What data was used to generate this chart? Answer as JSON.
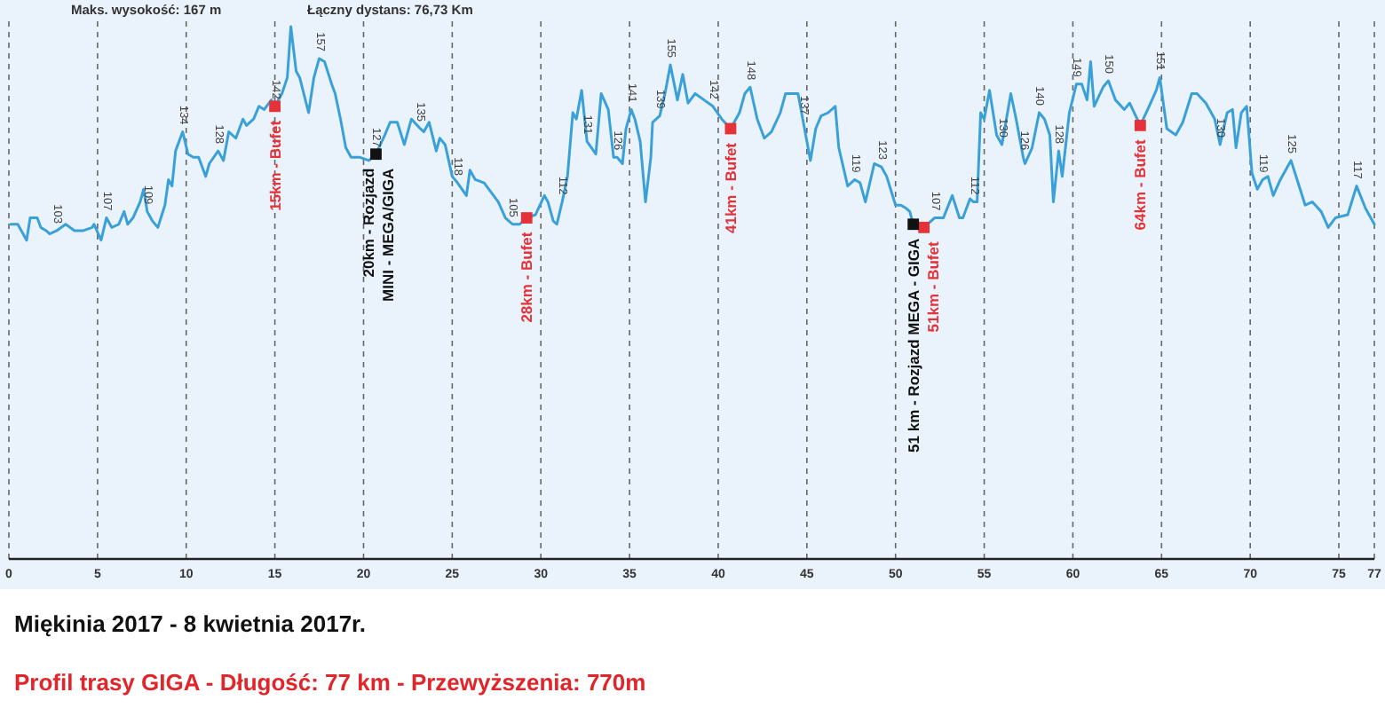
{
  "chart_data": {
    "type": "line",
    "title": "Miękinia 2017 - 8 kwietnia 2017r.",
    "subtitle": "Profil trasy GIGA - Długość: 77 km - Przewyższenia: 770m",
    "xlim": [
      0,
      77
    ],
    "xticks": [
      0,
      5,
      10,
      15,
      20,
      25,
      30,
      35,
      40,
      45,
      50,
      55,
      60,
      65,
      70,
      75,
      77
    ],
    "tick_labels": "x",
    "grid": "x",
    "series": [
      {
        "color": "#3aa0d8",
        "x": [
          0.1,
          0.5,
          1.0,
          1.2,
          1.6,
          1.8,
          2.1,
          2.3,
          2.7,
          3.2,
          3.7,
          4.2,
          4.7,
          4.8,
          5.2,
          5.5,
          5.8,
          6.2,
          6.5,
          6.7,
          7.0,
          7.4,
          7.6,
          7.8,
          8.1,
          8.4,
          8.8,
          9.0,
          9.2,
          9.4,
          9.8,
          10.1,
          10.4,
          10.7,
          11.1,
          11.3,
          11.8,
          12.1,
          12.4,
          12.8,
          13.2,
          13.4,
          13.8,
          14.1,
          14.4,
          14.8,
          15.0,
          15.4,
          15.7,
          15.9,
          16.2,
          16.4,
          16.9,
          17.2,
          17.5,
          17.8,
          18.2,
          18.4,
          18.7,
          19.0,
          19.3,
          19.8,
          20.3,
          20.7,
          21.2,
          21.5,
          21.9,
          22.3,
          22.7,
          23.2,
          23.4,
          23.7,
          24.1,
          24.3,
          24.6,
          25.0,
          25.3,
          25.8,
          26.0,
          26.3,
          26.8,
          27.2,
          27.6,
          28.0,
          28.4,
          28.8,
          29.2,
          29.7,
          30.2,
          30.4,
          30.7,
          30.9,
          31.2,
          31.5,
          31.8,
          32.0,
          32.3,
          32.6,
          33.1,
          33.4,
          33.8,
          34.1,
          34.3,
          34.6,
          34.8,
          35.1,
          35.3,
          35.6,
          35.9,
          36.2,
          36.3,
          36.7,
          37.0,
          37.3,
          37.7,
          38.0,
          38.3,
          38.7,
          39.2,
          39.7,
          40.2,
          40.7,
          41.2,
          41.5,
          41.8,
          42.2,
          42.6,
          43.0,
          43.5,
          43.8,
          44.2,
          44.5,
          44.8,
          45.2,
          45.5,
          45.8,
          46.2,
          46.6,
          46.8,
          47.3,
          47.7,
          48.0,
          48.3,
          48.8,
          49.2,
          49.5,
          50.0,
          50.3,
          50.6,
          50.8,
          51.0,
          51.3,
          51.6,
          52.2,
          52.7,
          53.2,
          53.6,
          53.8,
          54.2,
          54.4,
          54.6,
          54.8,
          55.0,
          55.3,
          55.7,
          56.0,
          56.5,
          56.8,
          57.2,
          57.3,
          57.7,
          58.1,
          58.4,
          58.7,
          58.9,
          59.2,
          59.4,
          59.8,
          60.2,
          60.5,
          60.8,
          61.0,
          61.2,
          61.7,
          62.0,
          62.4,
          62.9,
          63.2,
          63.8,
          64.3,
          64.7,
          64.9,
          65.3,
          65.8,
          66.2,
          66.7,
          67.0,
          67.5,
          68.0,
          68.3,
          68.7,
          69.0,
          69.2,
          69.5,
          69.8,
          70.1,
          70.4,
          70.7,
          71.0,
          71.3,
          71.7,
          72.1,
          72.3,
          72.7,
          73.1,
          73.5,
          74.0,
          74.4,
          74.8,
          75.5,
          76.0,
          76.5,
          77.0
        ],
        "values": [
          105,
          105,
          100,
          107,
          107,
          104,
          103,
          102,
          103,
          105,
          103,
          103,
          104,
          105,
          100,
          107,
          104,
          105,
          109,
          105,
          107,
          112,
          116,
          109,
          106,
          104,
          111,
          119,
          117,
          128,
          134,
          127,
          126,
          126,
          120,
          124,
          128,
          125,
          134,
          132,
          138,
          136,
          138,
          142,
          141,
          144,
          142,
          146,
          151,
          167,
          153,
          151,
          140,
          151,
          157,
          156,
          149,
          146,
          138,
          129,
          126,
          126,
          125,
          127,
          133,
          137,
          137,
          130,
          138,
          135,
          134,
          137,
          128,
          132,
          130,
          120,
          118,
          114,
          122,
          119,
          118,
          115,
          112,
          107,
          105,
          105,
          107,
          108,
          114,
          112,
          106,
          105,
          112,
          120,
          140,
          138,
          147,
          131,
          127,
          146,
          141,
          126,
          126,
          124,
          135,
          141,
          138,
          131,
          112,
          126,
          137,
          139,
          146,
          155,
          144,
          152,
          143,
          146,
          144,
          142,
          138,
          135,
          140,
          146,
          148,
          138,
          132,
          134,
          140,
          146,
          146,
          146,
          137,
          125,
          135,
          139,
          140,
          142,
          129,
          117,
          119,
          118,
          112,
          124,
          123,
          120,
          111,
          111,
          110,
          109,
          105,
          105,
          104,
          107,
          107,
          114,
          107,
          107,
          113,
          112,
          112,
          140,
          138,
          147,
          133,
          130,
          146,
          138,
          126,
          124,
          129,
          140,
          138,
          133,
          112,
          128,
          120,
          140,
          149,
          149,
          144,
          156,
          142,
          148,
          150,
          144,
          141,
          143,
          136,
          142,
          147,
          151,
          135,
          133,
          137,
          146,
          146,
          143,
          138,
          130,
          140,
          141,
          129,
          140,
          142,
          121,
          116,
          119,
          120,
          114,
          119,
          123,
          125,
          118,
          111,
          112,
          109,
          104,
          107,
          108,
          117,
          110,
          105
        ],
        "value_labels": [
          null,
          null,
          null,
          null,
          null,
          null,
          null,
          null,
          "103",
          null,
          null,
          null,
          null,
          null,
          null,
          "107",
          null,
          null,
          null,
          null,
          null,
          null,
          null,
          "109",
          null,
          null,
          null,
          null,
          null,
          null,
          "134",
          null,
          null,
          null,
          null,
          null,
          "128",
          null,
          null,
          null,
          null,
          null,
          null,
          null,
          null,
          null,
          "142",
          null,
          null,
          null,
          null,
          null,
          null,
          null,
          "157",
          null,
          null,
          null,
          null,
          null,
          null,
          null,
          null,
          "127",
          null,
          null,
          null,
          null,
          null,
          "135",
          null,
          null,
          null,
          null,
          null,
          null,
          "118",
          null,
          null,
          null,
          null,
          null,
          null,
          null,
          "105",
          null,
          null,
          null,
          null,
          null,
          null,
          null,
          "112",
          null,
          null,
          null,
          null,
          "131",
          null,
          null,
          null,
          null,
          "126",
          null,
          null,
          "141",
          null,
          null,
          null,
          null,
          null,
          "139",
          null,
          "155",
          null,
          null,
          null,
          null,
          null,
          "142",
          null,
          null,
          null,
          null,
          "148",
          null,
          null,
          null,
          null,
          null,
          null,
          null,
          "137",
          null,
          null,
          null,
          null,
          null,
          null,
          null,
          "119",
          null,
          null,
          null,
          "123",
          null,
          null,
          null,
          null,
          null,
          null,
          null,
          null,
          "107",
          null,
          null,
          null,
          null,
          null,
          "112",
          null,
          null,
          null,
          null,
          null,
          "130",
          null,
          null,
          "126",
          null,
          null,
          "140",
          null,
          null,
          null,
          "128",
          null,
          null,
          "149",
          null,
          null,
          null,
          null,
          null,
          "150",
          null,
          null,
          null,
          null,
          null,
          null,
          "151",
          null,
          null,
          null,
          null,
          null,
          null,
          null,
          "130",
          null,
          null,
          null,
          null,
          null,
          null,
          null,
          "119",
          null,
          null,
          null,
          null,
          "125",
          null,
          null,
          null,
          null,
          null,
          null,
          null,
          "117",
          null,
          null
        ]
      },
      {
        "type": "scatter",
        "color": "#e53238",
        "marker": "square",
        "x": [
          15.0,
          29.2,
          40.7,
          51.6,
          63.8
        ],
        "values": [
          142,
          107,
          135,
          104,
          136
        ]
      },
      {
        "type": "scatter",
        "color": "#111111",
        "marker": "square",
        "x": [
          20.7,
          51.0
        ],
        "values": [
          127,
          105
        ]
      }
    ],
    "annotations": [
      "Maks. wysokość: 167 m",
      "Łączny dystans: 76,73 Km",
      {
        "text": "15km - Bufet",
        "x": 15.0,
        "y": 142
      },
      {
        "text": "20km - Rozjazd\nMINI - MEGA/GIGA",
        "x": 20.7,
        "y": 127
      },
      {
        "text": "28km - Bufet",
        "x": 29.2,
        "y": 107
      },
      {
        "text": "41km - Bufet",
        "x": 40.7,
        "y": 135
      },
      {
        "text": "51 km - Rozjazd MEGA - GIGA",
        "x": 51.0,
        "y": 105
      },
      {
        "text": "51km - Bufet",
        "x": 51.6,
        "y": 104
      },
      {
        "text": "64km - Bufet",
        "x": 63.8,
        "y": 136
      }
    ]
  }
}
